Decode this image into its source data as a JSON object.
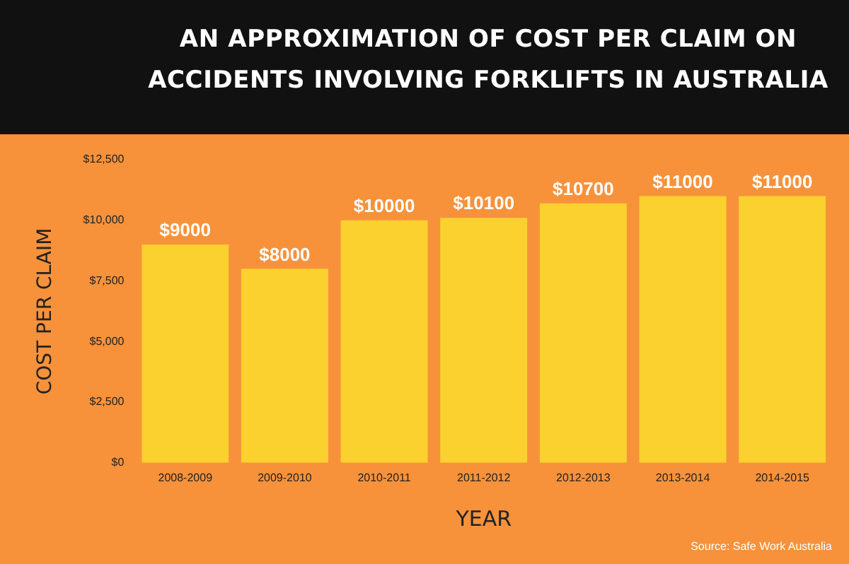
{
  "chart_data": {
    "type": "bar",
    "title": "AN APPROXIMATION OF COST PER CLAIM ON ACCIDENTS INVOLVING FORKLIFTS IN AUSTRALIA",
    "xlabel": "YEAR",
    "ylabel": "COST PER CLAIM",
    "annotations": [
      "Source: Safe Work Australia"
    ],
    "categories": [
      "2008-2009",
      "2009-2010",
      "2010-2011",
      "2011-2012",
      "2012-2013",
      "2013-2014",
      "2014-2015"
    ],
    "values": [
      9000,
      8000,
      10000,
      10100,
      10700,
      11000,
      11000
    ],
    "value_labels": [
      "$9000",
      "$8000",
      "$10000",
      "$10100",
      "$10700",
      "$11000",
      "$11000"
    ],
    "color": "#fad12e",
    "ylim": [
      0,
      12500
    ],
    "yticks": [
      {
        "value": 0,
        "label": "$0"
      },
      {
        "value": 2500,
        "label": "$2,500"
      },
      {
        "value": 5000,
        "label": "$5,000"
      },
      {
        "value": 7500,
        "label": "$7,500"
      },
      {
        "value": 10000,
        "label": "$10,000"
      },
      {
        "value": 12500,
        "label": "$12,500"
      }
    ],
    "grid": false,
    "legend": false
  }
}
